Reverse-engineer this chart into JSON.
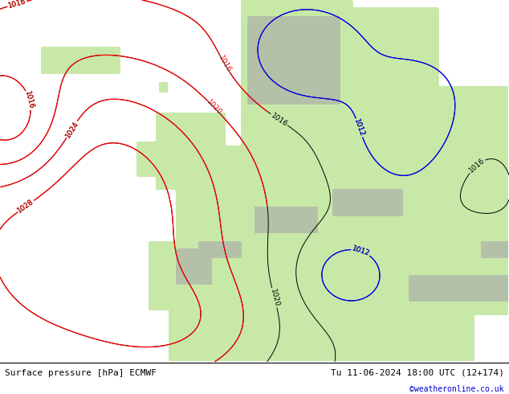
{
  "title_left": "Surface pressure [hPa] ECMWF",
  "title_right": "Tu 11-06-2024 18:00 UTC (12+174)",
  "copyright": "©weatheronline.co.uk",
  "copyright_color": "#0000cc",
  "land_color": "#c8e8a8",
  "ocean_color": "#d0d0d0",
  "mountain_color": "#a8a8a8",
  "label_fontsize": 6.5,
  "title_fontsize": 8,
  "figsize": [
    6.34,
    4.9
  ],
  "dpi": 100,
  "bottom_bar_height": 0.082,
  "bottom_bar_color": "#ffffff",
  "lon_min": -30,
  "lon_max": 42,
  "lat_min": 30,
  "lat_max": 72
}
